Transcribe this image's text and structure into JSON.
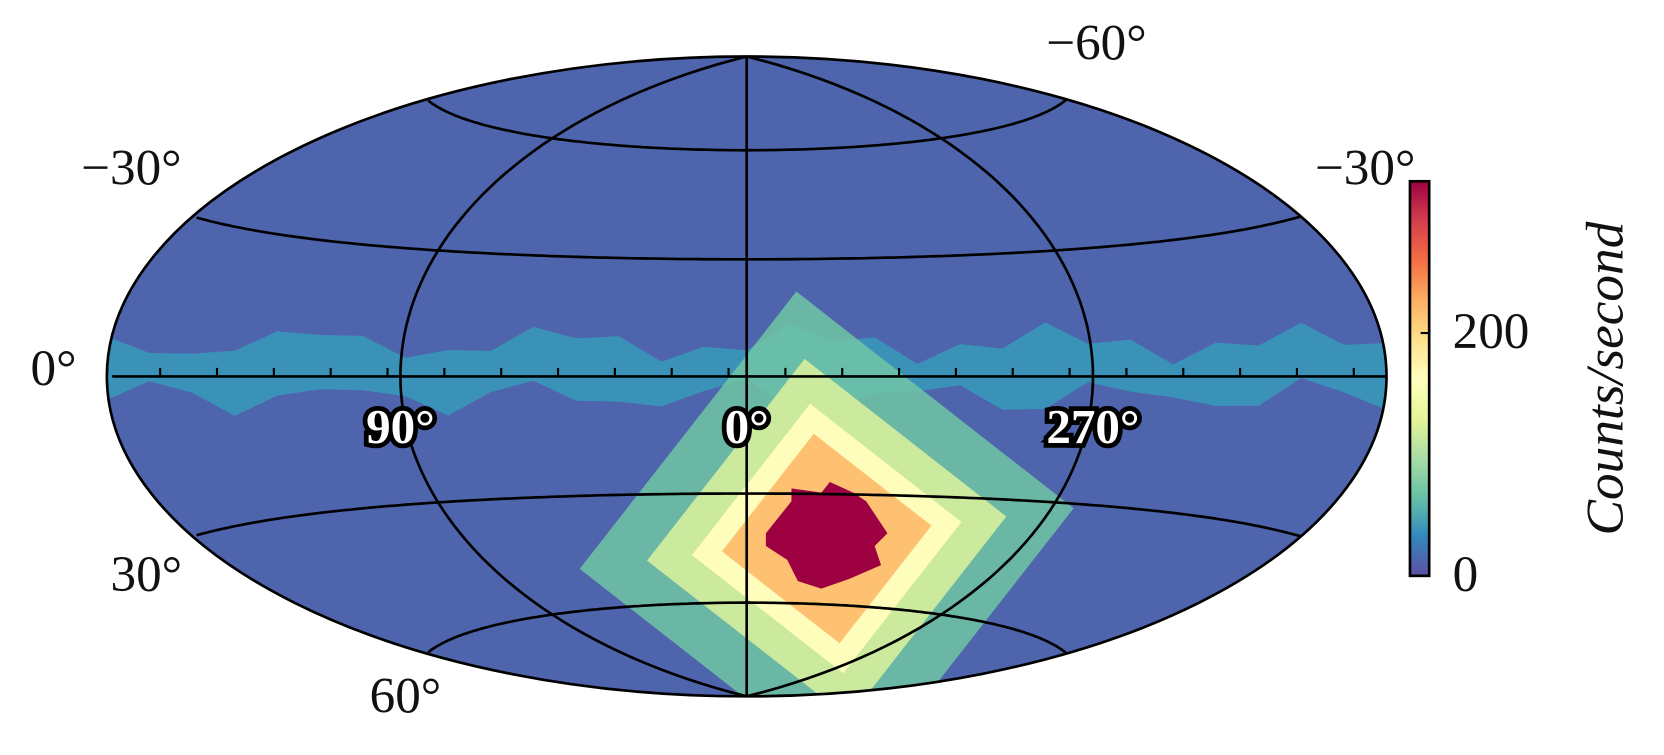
{
  "map": {
    "projection": "hammer",
    "colormap": "Spectral_r",
    "clim": [
      0,
      325
    ],
    "cticks": [
      0,
      200
    ],
    "clabel": "Counts/second",
    "parallels": [
      {
        "value": -60,
        "label": "−60°"
      },
      {
        "value": -30,
        "label": "−30°"
      },
      {
        "value": 0,
        "label": "0°"
      },
      {
        "value": 30,
        "label": "30°"
      },
      {
        "value": 60,
        "label": "60°"
      }
    ],
    "meridians": [
      {
        "value": 90,
        "label": "90°"
      },
      {
        "value": 0,
        "label": "0°"
      },
      {
        "value": 270,
        "label": "270°"
      }
    ],
    "region_values": [
      12,
      38,
      70,
      115,
      165,
      215,
      325
    ]
  }
}
